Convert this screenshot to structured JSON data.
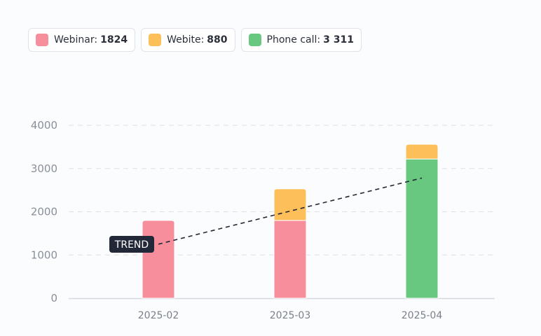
{
  "legend": [
    {
      "label": "Webinar:",
      "value": "1824",
      "color": "#f78e9c"
    },
    {
      "label": "Webite:",
      "value": "880",
      "color": "#fdbf5a"
    },
    {
      "label": "Phone call:",
      "value": "3 311",
      "color": "#68c87f"
    }
  ],
  "chart_data": {
    "type": "bar",
    "stacked": true,
    "categories": [
      "2025-02",
      "2025-03",
      "2025-04"
    ],
    "series": [
      {
        "name": "Webinar",
        "color": "#f78e9c",
        "values": [
          1800,
          1800,
          0
        ]
      },
      {
        "name": "Phone call",
        "color": "#68c87f",
        "values": [
          0,
          0,
          3220
        ]
      },
      {
        "name": "Webite",
        "color": "#fdbf5a",
        "values": [
          0,
          730,
          340
        ]
      }
    ],
    "trend": {
      "label": "TREND",
      "from": {
        "x": "2025-02",
        "y": 1250
      },
      "to": {
        "x": "2025-04",
        "y": 2780
      }
    },
    "ylim": [
      0,
      4000
    ],
    "yticks": [
      0,
      1000,
      2000,
      3000,
      4000
    ],
    "grid": true
  }
}
